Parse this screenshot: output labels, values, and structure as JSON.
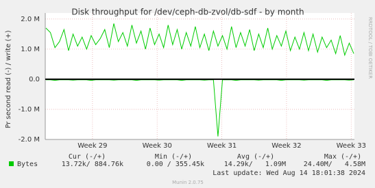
{
  "chart_data": {
    "type": "line",
    "title": "Disk throughput for /dev/ceph-db-zvol/db-sdf - by month",
    "y_label": "Pr second read (-) / write (+)",
    "side_text": "RRDTOOL / TOBI OETIKER",
    "x": [
      28.28,
      28.35,
      28.42,
      28.49,
      28.56,
      28.63,
      28.7,
      28.77,
      28.84,
      28.91,
      28.98,
      29.05,
      29.12,
      29.19,
      29.26,
      29.33,
      29.4,
      29.47,
      29.54,
      29.61,
      29.68,
      29.75,
      29.82,
      29.89,
      29.96,
      30.03,
      30.1,
      30.17,
      30.24,
      30.31,
      30.38,
      30.45,
      30.52,
      30.59,
      30.66,
      30.73,
      30.8,
      30.87,
      30.94,
      31.01,
      31.08,
      31.15,
      31.22,
      31.29,
      31.36,
      31.43,
      31.5,
      31.57,
      31.64,
      31.71,
      31.78,
      31.85,
      31.92,
      31.99,
      32.06,
      32.13,
      32.2,
      32.27,
      32.34,
      32.41,
      32.48,
      32.55,
      32.62,
      32.69,
      32.76,
      32.83,
      32.9,
      32.97,
      33.04
    ],
    "series": [
      {
        "name": "Bytes",
        "color": "#00cc00",
        "values": [
          1700000,
          1550000,
          1050000,
          1250000,
          1650000,
          950000,
          1500000,
          1100000,
          1400000,
          1000000,
          1450000,
          1150000,
          1350000,
          1650000,
          1050000,
          1850000,
          1250000,
          1550000,
          1100000,
          1800000,
          1200000,
          1600000,
          1000000,
          1700000,
          1150000,
          1500000,
          1050000,
          1800000,
          1150000,
          1650000,
          1000000,
          1550000,
          1100000,
          1750000,
          1050000,
          1500000,
          950000,
          1600000,
          1100000,
          1450000,
          1000000,
          1750000,
          1050000,
          1550000,
          1100000,
          1650000,
          950000,
          1500000,
          1050000,
          1700000,
          1000000,
          1450000,
          1100000,
          1600000,
          950000,
          1400000,
          1000000,
          1550000,
          950000,
          1500000,
          900000,
          1400000,
          1050000,
          1300000,
          850000,
          1450000,
          800000,
          1200000,
          850000
        ]
      },
      {
        "color": "#00cc00",
        "values": [
          -20000,
          -20000,
          -40000,
          -20000,
          -20000,
          -20000,
          -30000,
          -20000,
          -20000,
          -20000,
          -40000,
          -20000,
          -20000,
          -20000,
          -20000,
          -30000,
          -20000,
          -20000,
          -20000,
          -20000,
          -40000,
          -20000,
          -20000,
          -20000,
          -20000,
          -30000,
          -20000,
          -20000,
          -20000,
          -20000,
          -40000,
          -20000,
          -20000,
          -20000,
          -20000,
          -30000,
          -20000,
          -20000,
          -1900000,
          -20000,
          -20000,
          -20000,
          -40000,
          -20000,
          -20000,
          -20000,
          -20000,
          -30000,
          -20000,
          -20000,
          -20000,
          -20000,
          -40000,
          -20000,
          -20000,
          -20000,
          -20000,
          -30000,
          -20000,
          -20000,
          -20000,
          -20000,
          -40000,
          -20000,
          -20000,
          -20000,
          -20000,
          -30000,
          -20000
        ]
      }
    ],
    "xlim": [
      28.27,
      33.05
    ],
    "xticks": [
      {
        "value": 29,
        "label": "Week 29"
      },
      {
        "value": 30,
        "label": "Week 30"
      },
      {
        "value": 31,
        "label": "Week 31"
      },
      {
        "value": 32,
        "label": "Week 32"
      },
      {
        "value": 33,
        "label": "Week 33"
      }
    ],
    "ylim": [
      -2000000,
      2200000
    ],
    "yticks": [
      {
        "value": 2000000,
        "label": "2.0 M"
      },
      {
        "value": 1000000,
        "label": "1.0 M"
      },
      {
        "value": 0,
        "label": "0.0"
      },
      {
        "value": -1000000,
        "label": "-1.0 M"
      },
      {
        "value": -2000000,
        "label": "-2.0 M"
      }
    ],
    "grid": true,
    "summary": {
      "headers": [
        "Cur (-/+)",
        "Min (-/+)",
        "Avg (-/+)",
        "Max (-/+)"
      ],
      "row": [
        "13.72k/ 884.76k",
        "0.00 / 355.45k",
        "14.29k/   1.09M",
        "24.40M/   4.58M"
      ],
      "last_update": "Last update: Wed Aug 14 18:01:38 2024",
      "footer": "Munin 2.0.75"
    }
  }
}
